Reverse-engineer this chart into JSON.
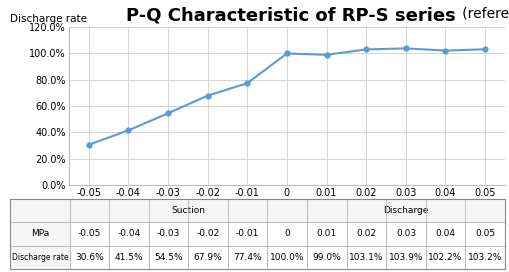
{
  "title_main": "P-Q Characteristic of RP-S series",
  "title_ref": "   (reference)",
  "ylabel": "Discharge rate",
  "xlabel_suction": "Suction",
  "xlabel_discharge": "Discharge",
  "xlabel_unit": "(MPa)",
  "x_values": [
    -0.05,
    -0.04,
    -0.03,
    -0.02,
    -0.01,
    0,
    0.01,
    0.02,
    0.03,
    0.04,
    0.05
  ],
  "y_values": [
    30.6,
    41.5,
    54.5,
    67.9,
    77.4,
    100.0,
    99.0,
    103.1,
    103.9,
    102.2,
    103.2
  ],
  "ylim": [
    0,
    120
  ],
  "yticks": [
    0,
    20,
    40,
    60,
    80,
    100,
    120
  ],
  "ytick_labels": [
    "0.0%",
    "20.0%",
    "40.0%",
    "60.0%",
    "80.0%",
    "100.0%",
    "120.0%"
  ],
  "xticks": [
    -0.05,
    -0.04,
    -0.03,
    -0.02,
    -0.01,
    0,
    0.01,
    0.02,
    0.03,
    0.04,
    0.05
  ],
  "xtick_labels": [
    "-0.05",
    "-0.04",
    "-0.03",
    "-0.02",
    "-0.01",
    "0",
    "0.01",
    "0.02",
    "0.03",
    "0.04",
    "0.05"
  ],
  "line_color": "#5B9BD5",
  "marker": "o",
  "marker_size": 3.5,
  "bg_color": "#ffffff",
  "grid_color": "#d0d0d0",
  "col_labels": [
    "-0.05",
    "-0.04",
    "-0.03",
    "-0.02",
    "-0.01",
    "0",
    "0.01",
    "0.02",
    "0.03",
    "0.04",
    "0.05"
  ],
  "row_mpa": [
    "-0.05",
    "-0.04",
    "-0.03",
    "-0.02",
    "-0.01",
    "0",
    "0.01",
    "0.02",
    "0.03",
    "0.04",
    "0.05"
  ],
  "row_rate": [
    "30.6%",
    "41.5%",
    "54.5%",
    "67.9%",
    "77.4%",
    "100.0%",
    "99.0%",
    "103.1%",
    "103.9%",
    "102.2%",
    "103.2%"
  ],
  "title_fontsize": 13,
  "axis_label_fontsize": 7.5,
  "tick_fontsize": 7,
  "table_fontsize": 6.5
}
